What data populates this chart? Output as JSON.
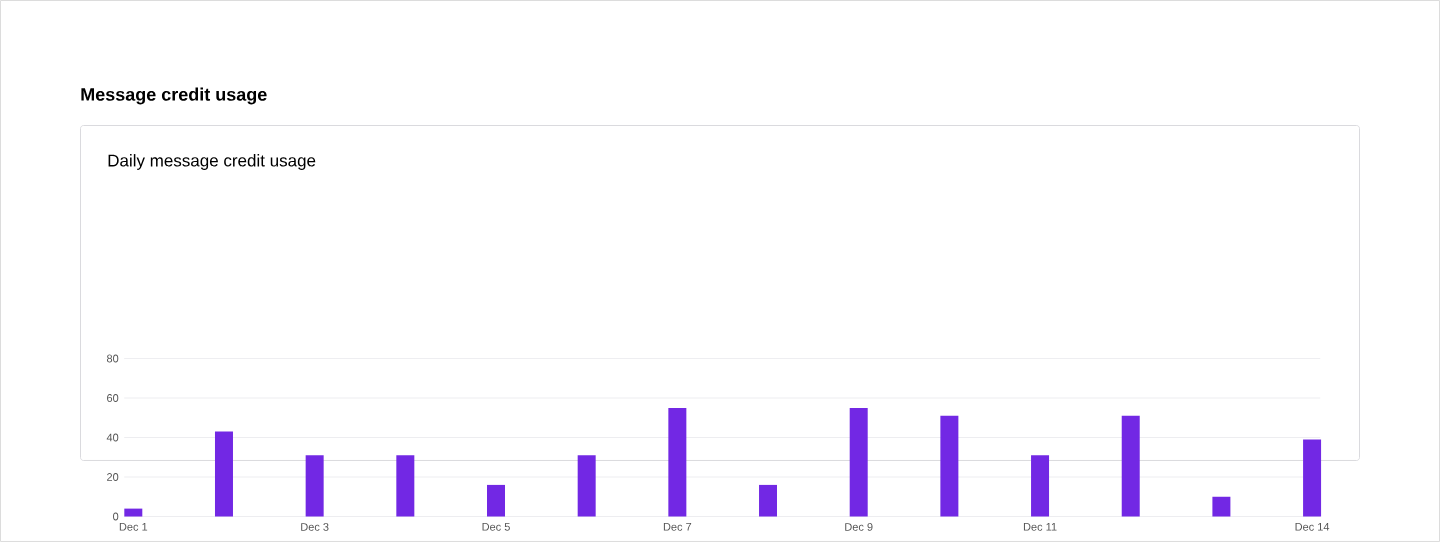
{
  "chart_data": {
    "type": "bar",
    "title": "Message credit usage",
    "subtitle": "Daily message credit usage",
    "categories": [
      "Dec 1",
      null,
      "Dec 3",
      null,
      "Dec 5",
      null,
      "Dec 7",
      null,
      "Dec 9",
      null,
      "Dec 11",
      null,
      null,
      "Dec 14"
    ],
    "values": [
      4,
      43,
      31,
      31,
      16,
      31,
      55,
      16,
      55,
      51,
      31,
      51,
      10,
      39
    ],
    "color": "#7228e4",
    "ylim": [
      0,
      80
    ],
    "yticks": [
      0,
      20,
      40,
      60,
      80
    ],
    "grid": "y"
  }
}
